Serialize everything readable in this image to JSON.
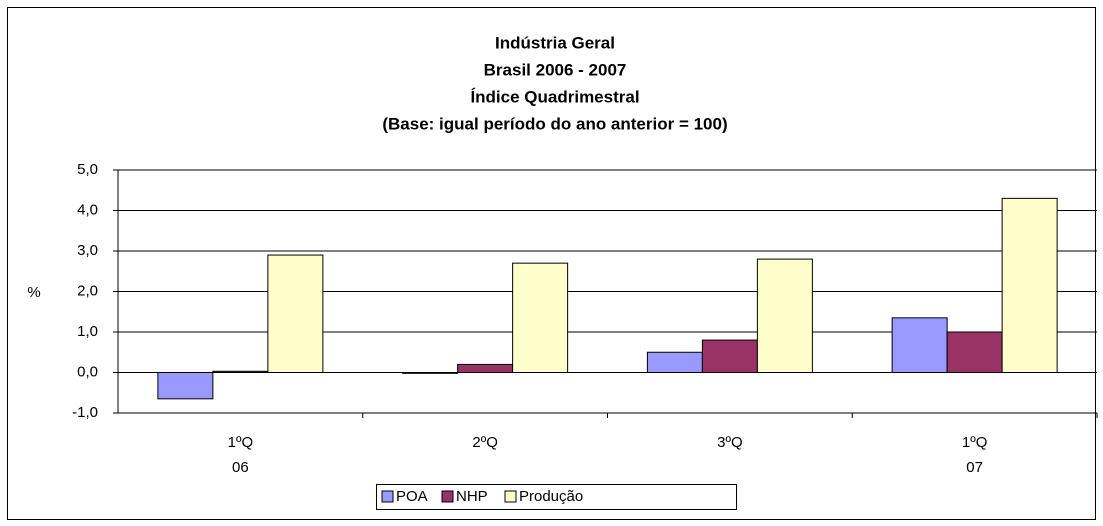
{
  "chart_data": {
    "type": "bar",
    "title": [
      "Indústria Geral",
      "Brasil 2006 - 2007",
      "Índice Quadrimestral",
      "(Base: igual período do ano anterior = 100)"
    ],
    "ylabel": "%",
    "categories": [
      [
        "1ºQ",
        "06"
      ],
      [
        "2ºQ"
      ],
      [
        "3ºQ"
      ],
      [
        "1ºQ",
        "07"
      ]
    ],
    "series": [
      {
        "name": "POA",
        "color": "#9999ff",
        "values": [
          -0.65,
          -0.02,
          0.5,
          1.35
        ]
      },
      {
        "name": "NHP",
        "color": "#993366",
        "values": [
          0.03,
          0.2,
          0.8,
          1.0
        ]
      },
      {
        "name": "Produção",
        "color": "#ffffcc",
        "values": [
          2.9,
          2.7,
          2.8,
          4.3
        ]
      }
    ],
    "ylim": [
      -1,
      5
    ],
    "yticks": [
      {
        "value": -1,
        "label": "-1,0"
      },
      {
        "value": 0,
        "label": "0,0"
      },
      {
        "value": 1,
        "label": "1,0"
      },
      {
        "value": 2,
        "label": "2,0"
      },
      {
        "value": 3,
        "label": "3,0"
      },
      {
        "value": 4,
        "label": "4,0"
      },
      {
        "value": 5,
        "label": "5,0"
      }
    ],
    "grid": true,
    "legend": "bottom"
  }
}
